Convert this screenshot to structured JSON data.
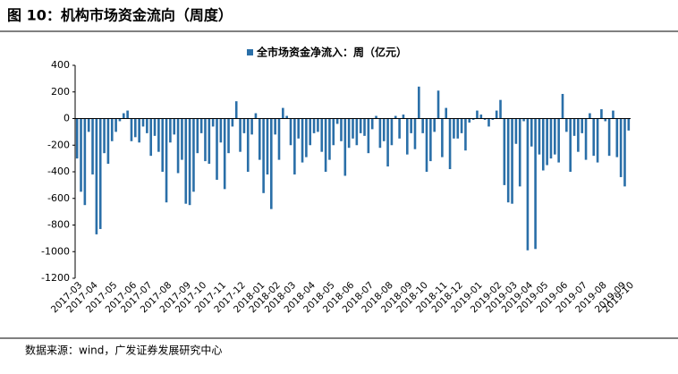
{
  "chart_data": {
    "type": "bar",
    "title": "图 10：机构市场资金流向（周度）",
    "source": "数据来源：wind，广发证券发展研究中心",
    "ylim": [
      -1200,
      400
    ],
    "yticks": [
      -1200,
      -1000,
      -800,
      -600,
      -400,
      -200,
      0,
      200,
      400
    ],
    "categories": [
      "2017-03",
      null,
      null,
      null,
      "2017-04",
      null,
      null,
      null,
      null,
      "2017-05",
      null,
      null,
      null,
      null,
      "2017-06",
      null,
      null,
      null,
      "2017-07",
      null,
      null,
      null,
      null,
      "2017-08",
      null,
      null,
      null,
      null,
      "2017-09",
      null,
      null,
      null,
      "2017-10",
      null,
      null,
      null,
      null,
      "2017-11",
      null,
      null,
      null,
      null,
      "2017-12",
      null,
      null,
      null,
      null,
      "2018-01",
      null,
      null,
      null,
      "2018-02",
      null,
      null,
      null,
      "2018-03",
      null,
      null,
      null,
      null,
      "2018-04",
      null,
      null,
      null,
      null,
      "2018-05",
      null,
      null,
      null,
      null,
      "2018-06",
      null,
      null,
      null,
      null,
      "2018-07",
      null,
      null,
      null,
      null,
      "2018-08",
      null,
      null,
      null,
      null,
      "2018-09",
      null,
      null,
      null,
      "2018-10",
      null,
      null,
      null,
      null,
      "2018-11",
      null,
      null,
      null,
      "2018-12",
      null,
      null,
      null,
      null,
      "2019-01",
      null,
      null,
      null,
      null,
      "2019-02",
      null,
      null,
      null,
      "2019-03",
      null,
      null,
      null,
      "2019-04",
      null,
      null,
      null,
      "2019-05",
      null,
      null,
      null,
      null,
      "2019-06",
      null,
      null,
      null,
      null,
      "2019-07",
      null,
      null,
      null,
      null,
      "2019-08",
      null,
      null,
      null,
      null,
      "2019-09",
      null,
      "2019-10"
    ],
    "series": [
      {
        "name": "全市场资金净流入：周（亿元）",
        "color": "#2a6fa8",
        "values": [
          -300,
          -550,
          -650,
          -100,
          -420,
          -870,
          -830,
          -260,
          -340,
          -170,
          -100,
          -20,
          40,
          60,
          -170,
          -140,
          -180,
          -60,
          -110,
          -280,
          -130,
          -250,
          -400,
          -630,
          -180,
          -120,
          -410,
          -310,
          -640,
          -650,
          -550,
          -260,
          -110,
          -320,
          -340,
          -60,
          -460,
          -180,
          -530,
          -260,
          -60,
          130,
          -250,
          -110,
          -400,
          -120,
          40,
          -310,
          -560,
          -420,
          -680,
          -120,
          -310,
          80,
          20,
          -200,
          -420,
          -150,
          -330,
          -290,
          -200,
          -110,
          -100,
          -250,
          -400,
          -310,
          -200,
          -40,
          -170,
          -430,
          -220,
          -150,
          -200,
          -110,
          -130,
          -260,
          -80,
          20,
          -220,
          -170,
          -360,
          -200,
          20,
          -150,
          30,
          -270,
          -110,
          -230,
          240,
          -110,
          -400,
          -320,
          -100,
          210,
          -290,
          80,
          -380,
          -150,
          -150,
          -110,
          -240,
          -30,
          -10,
          60,
          30,
          -10,
          -60,
          -10,
          60,
          140,
          -500,
          -630,
          -640,
          -190,
          -510,
          -20,
          -990,
          -210,
          -980,
          -270,
          -390,
          -350,
          -300,
          -270,
          -330,
          185,
          -100,
          -400,
          -130,
          -250,
          -110,
          -310,
          40,
          -280,
          -330,
          70,
          -20,
          -280,
          60,
          -290,
          -440,
          -510,
          -90
        ]
      }
    ]
  }
}
